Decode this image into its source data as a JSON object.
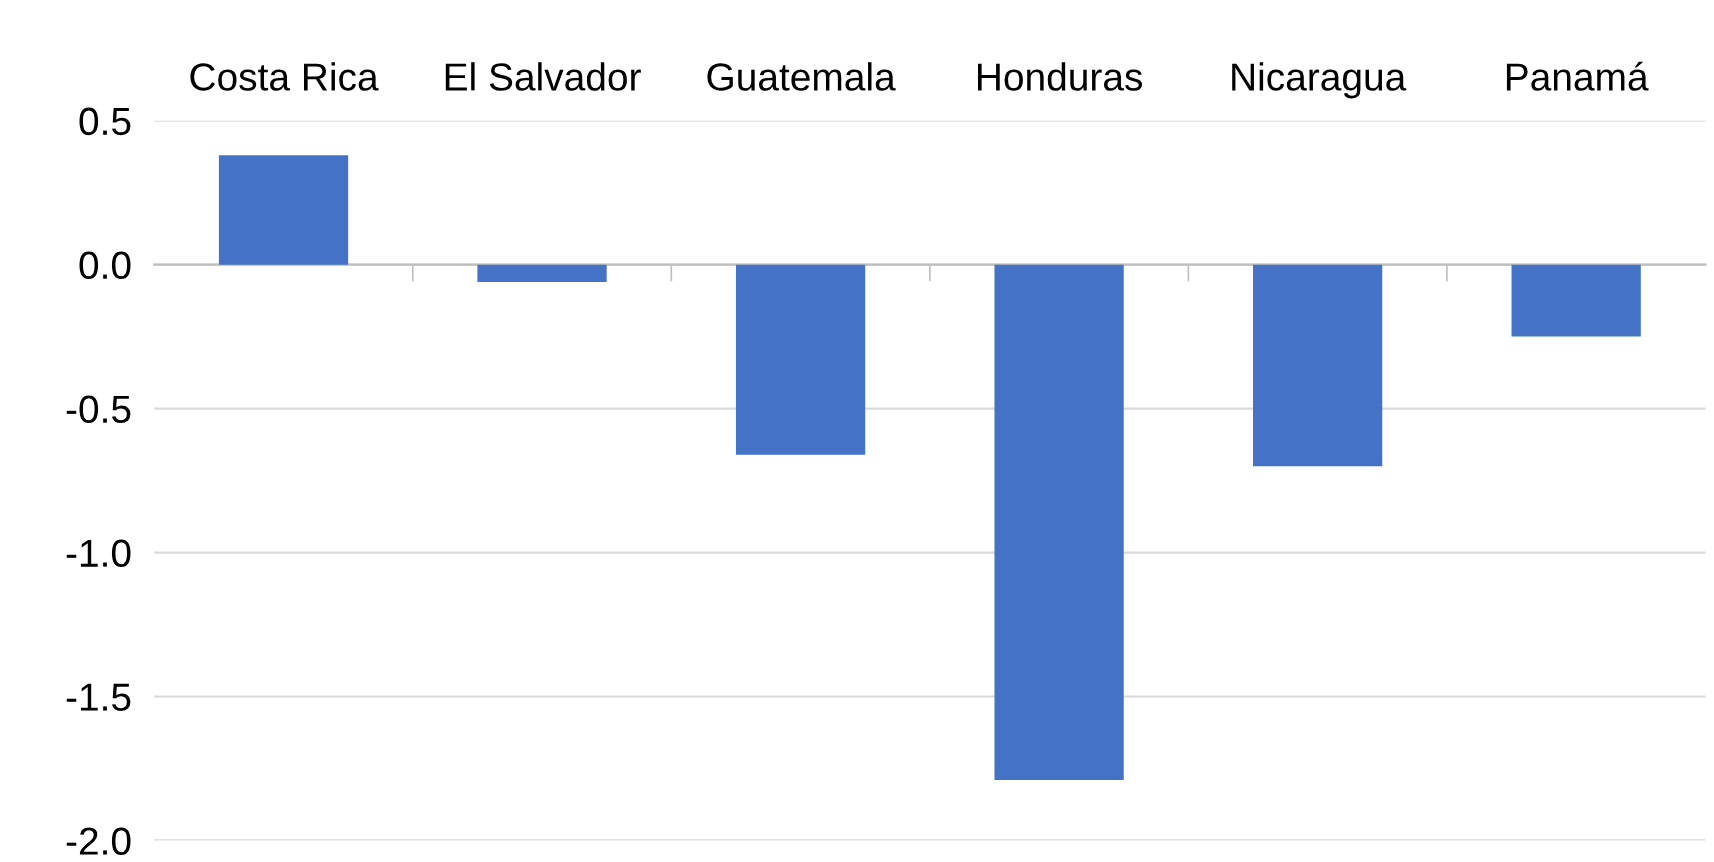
{
  "chart_data": {
    "type": "bar",
    "categories": [
      "Costa Rica",
      "El Salvador",
      "Guatemala",
      "Honduras",
      "Nicaragua",
      "Panamá"
    ],
    "values": [
      0.38,
      -0.06,
      -0.66,
      -1.79,
      -0.7,
      -0.25
    ],
    "color": "#4472c4",
    "ylim": [
      -2.0,
      0.5
    ],
    "yticks": [
      {
        "value": -2,
        "label": "-2.0"
      },
      -1.5,
      {
        "value": -1,
        "label": "-1.0"
      },
      -0.5,
      {
        "value": 0,
        "label": "0.0"
      },
      0.5
    ],
    "grid": "y"
  }
}
